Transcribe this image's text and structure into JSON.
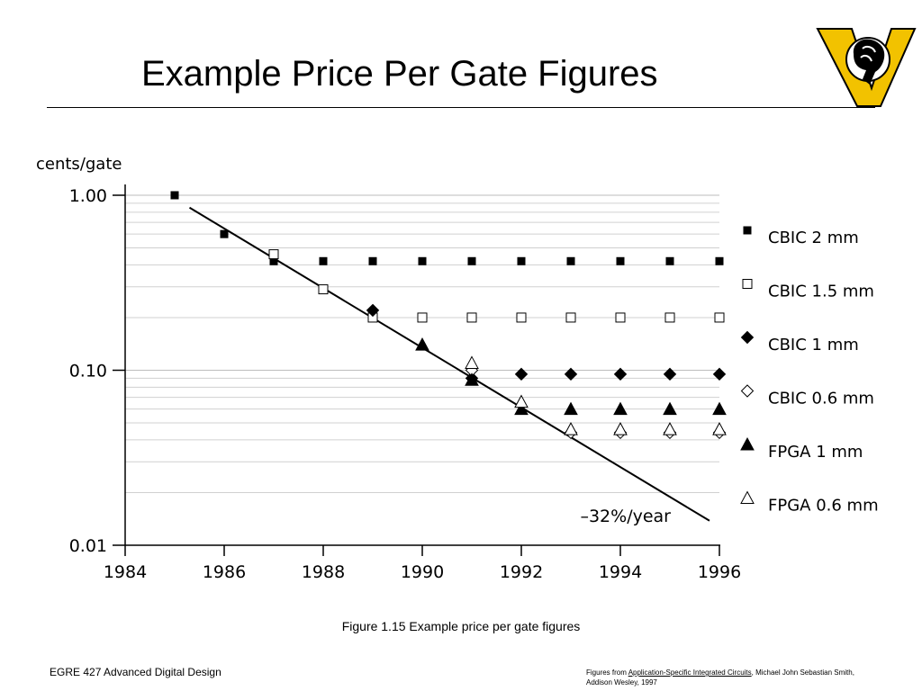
{
  "slide": {
    "title": "Example Price Per Gate Figures",
    "caption": "Figure 1.15 Example price per gate figures",
    "footer_left": "EGRE 427 Advanced Digital Design",
    "footer_right": {
      "prefix": "Figures from ",
      "link_text": "Application-Specific Integrated Circuits",
      "suffix": ", Michael John Sebastian Smith, Addison Wesley, 1997"
    }
  },
  "logo": {
    "icon": "ram-logo-icon",
    "colors": {
      "gold": "#f2c200",
      "black": "#000000"
    }
  },
  "chart_data": {
    "type": "scatter",
    "title": "",
    "ylabel": "cents/gate",
    "xlabel": "",
    "yscale": "log",
    "xlim": [
      1984,
      1996
    ],
    "ylim": [
      0.01,
      1.0
    ],
    "x_ticks": [
      "1984",
      "1986",
      "1988",
      "1990",
      "1992",
      "1994",
      "1996"
    ],
    "x_tick_values": [
      1984,
      1986,
      1988,
      1990,
      1992,
      1994,
      1996
    ],
    "y_ticks": [
      "1.00",
      "0.10",
      "0.01"
    ],
    "y_tick_values": [
      1.0,
      0.1,
      0.01
    ],
    "grid": "horizontal minor (log)",
    "legend_position": "right",
    "series": [
      {
        "name": "CBIC 2 mm",
        "marker": "square-filled",
        "x": [
          1985,
          1986,
          1987,
          1988,
          1989,
          1990,
          1991,
          1992,
          1993,
          1994,
          1995,
          1996
        ],
        "y": [
          1.0,
          0.6,
          0.42,
          0.42,
          0.42,
          0.42,
          0.42,
          0.42,
          0.42,
          0.42,
          0.42,
          0.42
        ]
      },
      {
        "name": "CBIC 1.5 mm",
        "marker": "square-open",
        "x": [
          1987,
          1988,
          1989,
          1990,
          1991,
          1992,
          1993,
          1994,
          1995,
          1996
        ],
        "y": [
          0.46,
          0.29,
          0.2,
          0.2,
          0.2,
          0.2,
          0.2,
          0.2,
          0.2,
          0.2
        ]
      },
      {
        "name": "CBIC 1 mm",
        "marker": "diamond-filled",
        "x": [
          1989,
          1991,
          1992,
          1993,
          1994,
          1995,
          1996
        ],
        "y": [
          0.22,
          0.09,
          0.095,
          0.095,
          0.095,
          0.095,
          0.095
        ]
      },
      {
        "name": "CBIC 0.6 mm",
        "marker": "diamond-open",
        "x": [
          1991,
          1993,
          1994,
          1995,
          1996
        ],
        "y": [
          0.1,
          0.044,
          0.044,
          0.044,
          0.044
        ]
      },
      {
        "name": "FPGA 1 mm",
        "marker": "triangle-filled",
        "x": [
          1990,
          1991,
          1992,
          1993,
          1994,
          1995,
          1996
        ],
        "y": [
          0.14,
          0.088,
          0.06,
          0.06,
          0.06,
          0.06,
          0.06
        ]
      },
      {
        "name": "FPGA 0.6 mm",
        "marker": "triangle-open",
        "x": [
          1991,
          1992,
          1993,
          1994,
          1995,
          1996
        ],
        "y": [
          0.11,
          0.066,
          0.046,
          0.046,
          0.046,
          0.046
        ]
      }
    ],
    "trend_line": {
      "label": "–32%/year",
      "x": [
        1985.3,
        1995.8
      ],
      "y": [
        0.85,
        0.0138
      ]
    }
  }
}
